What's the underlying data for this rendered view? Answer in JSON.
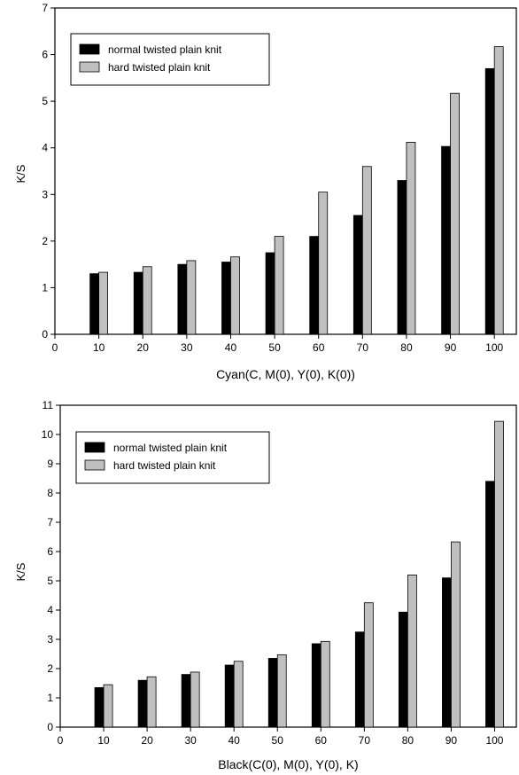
{
  "chart_data": [
    {
      "type": "bar",
      "title": "",
      "xlabel": "Cyan(C, M(0), Y(0), K(0))",
      "ylabel": "K/S",
      "categories": [
        "10",
        "20",
        "30",
        "40",
        "50",
        "60",
        "70",
        "80",
        "90",
        "100"
      ],
      "xtick_labels": [
        "0",
        "10",
        "20",
        "30",
        "40",
        "50",
        "60",
        "70",
        "80",
        "90",
        "100"
      ],
      "ylim": [
        0,
        7
      ],
      "yticks": [
        "0",
        "1",
        "2",
        "3",
        "4",
        "5",
        "6",
        "7"
      ],
      "legend_position": "top-left",
      "series": [
        {
          "name": "normal twisted plain knit",
          "color": "#000000",
          "values": [
            1.3,
            1.33,
            1.5,
            1.55,
            1.75,
            2.1,
            2.55,
            3.3,
            4.03,
            5.7
          ]
        },
        {
          "name": "hard twisted plain knit",
          "color": "#c0c0c0",
          "values": [
            1.33,
            1.45,
            1.58,
            1.66,
            2.1,
            3.05,
            3.6,
            4.12,
            5.17,
            6.17
          ]
        }
      ]
    },
    {
      "type": "bar",
      "title": "",
      "xlabel": "Black(C(0), M(0), Y(0), K)",
      "ylabel": "K/S",
      "categories": [
        "10",
        "20",
        "30",
        "40",
        "50",
        "60",
        "70",
        "80",
        "90",
        "100"
      ],
      "xtick_labels": [
        "0",
        "10",
        "20",
        "30",
        "40",
        "50",
        "60",
        "70",
        "80",
        "90",
        "100"
      ],
      "ylim": [
        0,
        11
      ],
      "yticks": [
        "0",
        "1",
        "2",
        "3",
        "4",
        "5",
        "6",
        "7",
        "8",
        "9",
        "10",
        "11"
      ],
      "legend_position": "top-left",
      "series": [
        {
          "name": "normal twisted plain knit",
          "color": "#000000",
          "values": [
            1.35,
            1.6,
            1.8,
            2.12,
            2.35,
            2.85,
            3.25,
            3.93,
            5.1,
            8.4
          ]
        },
        {
          "name": "hard twisted plain knit",
          "color": "#c0c0c0",
          "values": [
            1.45,
            1.72,
            1.88,
            2.25,
            2.47,
            2.93,
            4.25,
            5.2,
            6.33,
            10.45
          ]
        }
      ]
    }
  ]
}
